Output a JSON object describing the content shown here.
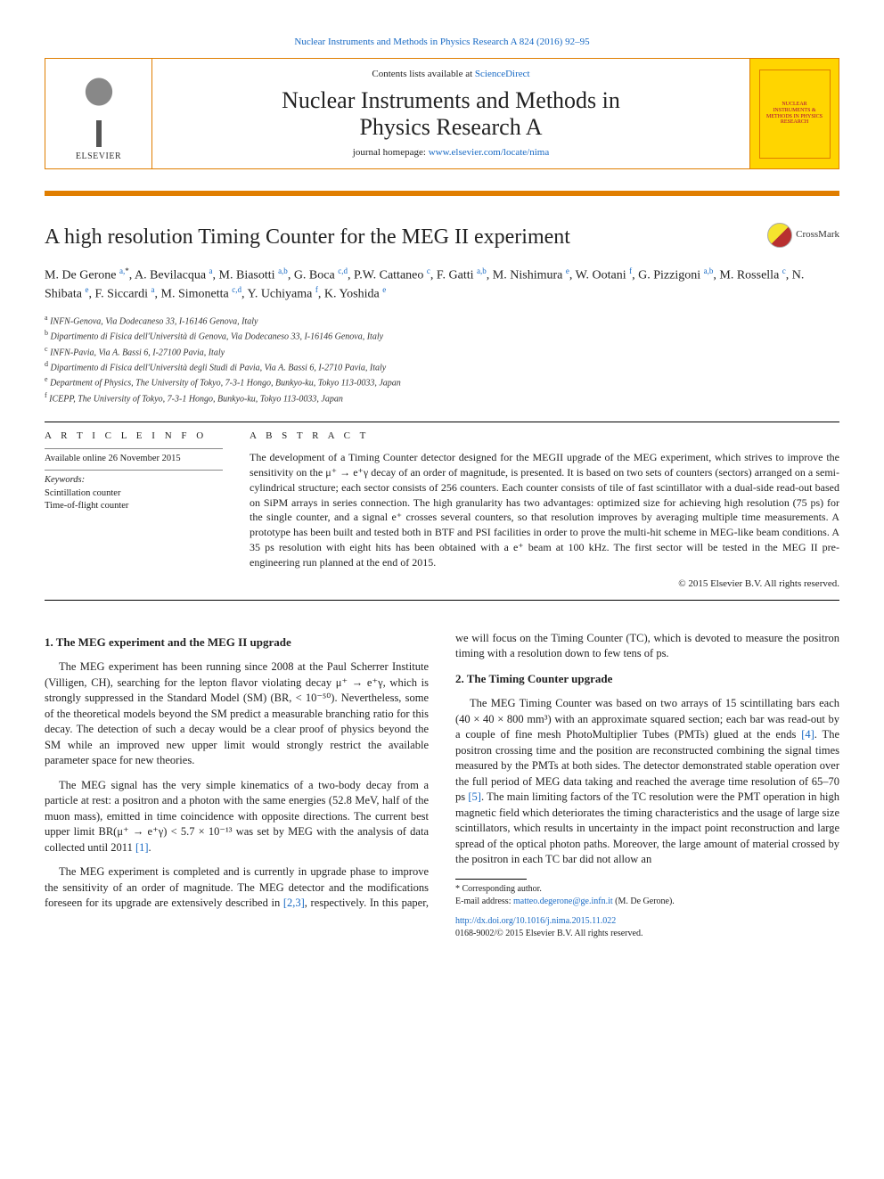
{
  "top_link": "Nuclear Instruments and Methods in Physics Research A 824 (2016) 92–95",
  "banner": {
    "contents_prefix": "Contents lists available at ",
    "contents_link": "ScienceDirect",
    "journal_title_l1": "Nuclear Instruments and Methods in",
    "journal_title_l2": "Physics Research A",
    "homepage_prefix": "journal homepage: ",
    "homepage_url": "www.elsevier.com/locate/nima",
    "publisher": "ELSEVIER",
    "cover_text": "NUCLEAR INSTRUMENTS & METHODS IN PHYSICS RESEARCH"
  },
  "article_title": "A high resolution Timing Counter for the MEG II experiment",
  "crossmark_label": "CrossMark",
  "authors_html": "M. De Gerone <sup>a,</sup><sup class='sup-plain'>*</sup>, A. Bevilacqua <sup>a</sup>, M. Biasotti <sup>a,b</sup>, G. Boca <sup>c,d</sup>, P.W. Cattaneo <sup>c</sup>, F. Gatti <sup>a,b</sup>, M. Nishimura <sup>e</sup>, W. Ootani <sup>f</sup>, G. Pizzigoni <sup>a,b</sup>, M. Rossella <sup>c</sup>, N. Shibata <sup>e</sup>, F. Siccardi <sup>a</sup>, M. Simonetta <sup>c,d</sup>, Y. Uchiyama <sup>f</sup>, K. Yoshida <sup>e</sup>",
  "affiliations": [
    "a INFN-Genova, Via Dodecaneso 33, I-16146 Genova, Italy",
    "b Dipartimento di Fisica dell'Università di Genova, Via Dodecaneso 33, I-16146 Genova, Italy",
    "c INFN-Pavia, Via A. Bassi 6, I-27100 Pavia, Italy",
    "d Dipartimento di Fisica dell'Università degli Studi di Pavia, Via A. Bassi 6, I-2710 Pavia, Italy",
    "e Department of Physics, The University of Tokyo, 7-3-1 Hongo, Bunkyo-ku, Tokyo 113-0033, Japan",
    "f ICEPP, The University of Tokyo, 7-3-1 Hongo, Bunkyo-ku, Tokyo 113-0033, Japan"
  ],
  "info": {
    "head": "A R T I C L E   I N F O",
    "available": "Available online 26 November 2015",
    "kw_label": "Keywords:",
    "keywords": [
      "Scintillation counter",
      "Time-of-flight counter"
    ]
  },
  "abstract": {
    "head": "A B S T R A C T",
    "text": "The development of a Timing Counter detector designed for the MEGII upgrade of the MEG experiment, which strives to improve the sensitivity on the μ⁺ → e⁺γ decay of an order of magnitude, is presented. It is based on two sets of counters (sectors) arranged on a semi-cylindrical structure; each sector consists of 256 counters. Each counter consists of tile of fast scintillator with a dual-side read-out based on SiPM arrays in series connection. The high granularity has two advantages: optimized size for achieving high resolution (75 ps) for the single counter, and a signal e⁺ crosses several counters, so that resolution improves by averaging multiple time measurements. A prototype has been built and tested both in BTF and PSI facilities in order to prove the multi-hit scheme in MEG-like beam conditions. A 35 ps resolution with eight hits has been obtained with a e⁺ beam at 100 kHz. The first sector will be tested in the MEG II pre-engineering run planned at the end of 2015.",
    "copyright": "© 2015 Elsevier B.V. All rights reserved."
  },
  "sections": {
    "s1_title": "1. The MEG experiment and the MEG II upgrade",
    "s1_p1": "The MEG experiment has been running since 2008 at the Paul Scherrer Institute (Villigen, CH), searching for the lepton flavor violating decay μ⁺ → e⁺γ, which is strongly suppressed in the Standard Model (SM) (BR, < 10⁻⁵⁰). Nevertheless, some of the theoretical models beyond the SM predict a measurable branching ratio for this decay. The detection of such a decay would be a clear proof of physics beyond the SM while an improved new upper limit would strongly restrict the available parameter space for new theories.",
    "s1_p2": "The MEG signal has the very simple kinematics of a two-body decay from a particle at rest: a positron and a photon with the same energies (52.8 MeV, half of the muon mass), emitted in time coincidence with opposite directions. The current best upper limit BR(μ⁺ → e⁺γ) < 5.7 × 10⁻¹³ was set by MEG with the analysis of data collected until 2011 ",
    "s1_p2_ref": "[1]",
    "s1_p2_tail": ".",
    "s1_p3_a": "The MEG experiment is completed and is currently in upgrade phase to improve the sensitivity of an order of magnitude. The MEG detector and the modifications foreseen for its upgrade are extensively described in ",
    "s1_p3_ref": "[2,3]",
    "s1_p3_b": ", respectively. In this paper, we will focus on the Timing Counter (TC), which is devoted to measure the positron timing with a resolution down to few tens of ps.",
    "s2_title": "2. The Timing Counter upgrade",
    "s2_p1_a": "The MEG Timing Counter was based on two arrays of 15 scintillating bars each (40 × 40 × 800 mm³) with an approximate squared section; each bar was read-out by a couple of fine mesh PhotoMultiplier Tubes (PMTs) glued at the ends ",
    "s2_p1_ref1": "[4]",
    "s2_p1_b": ". The positron crossing time and the position are reconstructed combining the signal times measured by the PMTs at both sides. The detector demonstrated stable operation over the full period of MEG data taking and reached the average time resolution of 65–70 ps ",
    "s2_p1_ref2": "[5]",
    "s2_p1_c": ". The main limiting factors of the TC resolution were the PMT operation in high magnetic field which deteriorates the timing characteristics and the usage of large size scintillators, which results in uncertainty in the impact point reconstruction and large spread of the optical photon paths. Moreover, the large amount of material crossed by the positron in each TC bar did not allow an"
  },
  "footnote": {
    "corr": "* Corresponding author.",
    "email_label": "E-mail address: ",
    "email": "matteo.degerone@ge.infn.it",
    "email_tail": " (M. De Gerone)."
  },
  "doi": "http://dx.doi.org/10.1016/j.nima.2015.11.022",
  "issn_line": "0168-9002/© 2015 Elsevier B.V. All rights reserved.",
  "colors": {
    "link": "#1769c4",
    "banner_border": "#e07e00",
    "cover_bg": "#ffd500"
  }
}
